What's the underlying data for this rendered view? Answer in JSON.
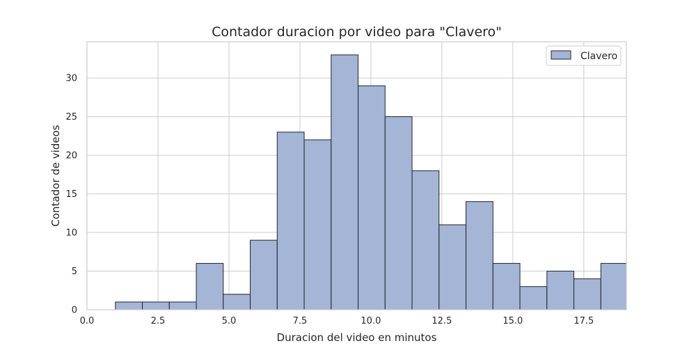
{
  "chart_data": {
    "type": "bar",
    "title": "Contador duracion por video para \"Clavero\"",
    "xlabel": "Duracion del video en minutos",
    "ylabel": "Contador de videos",
    "xlim": [
      0,
      19
    ],
    "ylim": [
      0,
      34.7
    ],
    "xticks": [
      "0.0",
      "2.5",
      "5.0",
      "7.5",
      "10.0",
      "12.5",
      "15.0",
      "17.5"
    ],
    "xtick_values": [
      0,
      2.5,
      5,
      7.5,
      10,
      12.5,
      15,
      17.5
    ],
    "yticks": [
      "0",
      "5",
      "10",
      "15",
      "20",
      "25",
      "30"
    ],
    "ytick_values": [
      0,
      5,
      10,
      15,
      20,
      25,
      30
    ],
    "grid": true,
    "legend": {
      "position": "top-right",
      "entries": [
        "Clavero"
      ]
    },
    "bar_color": "#a4b5d6",
    "series": [
      {
        "name": "Clavero",
        "bins": [
          [
            1.0,
            1.95,
            1
          ],
          [
            1.95,
            2.9,
            1
          ],
          [
            2.9,
            3.85,
            1
          ],
          [
            3.85,
            4.8,
            6
          ],
          [
            4.8,
            5.75,
            2
          ],
          [
            5.75,
            6.7,
            9
          ],
          [
            6.7,
            7.65,
            23
          ],
          [
            7.65,
            8.6,
            22
          ],
          [
            8.6,
            9.55,
            33
          ],
          [
            9.55,
            10.5,
            29
          ],
          [
            10.5,
            11.45,
            25
          ],
          [
            11.45,
            12.4,
            18
          ],
          [
            12.4,
            13.35,
            11
          ],
          [
            13.35,
            14.3,
            14
          ],
          [
            14.3,
            15.25,
            6
          ],
          [
            15.25,
            16.2,
            3
          ],
          [
            16.2,
            17.15,
            5
          ],
          [
            17.15,
            18.1,
            4
          ],
          [
            18.1,
            19.05,
            6
          ]
        ]
      }
    ]
  }
}
